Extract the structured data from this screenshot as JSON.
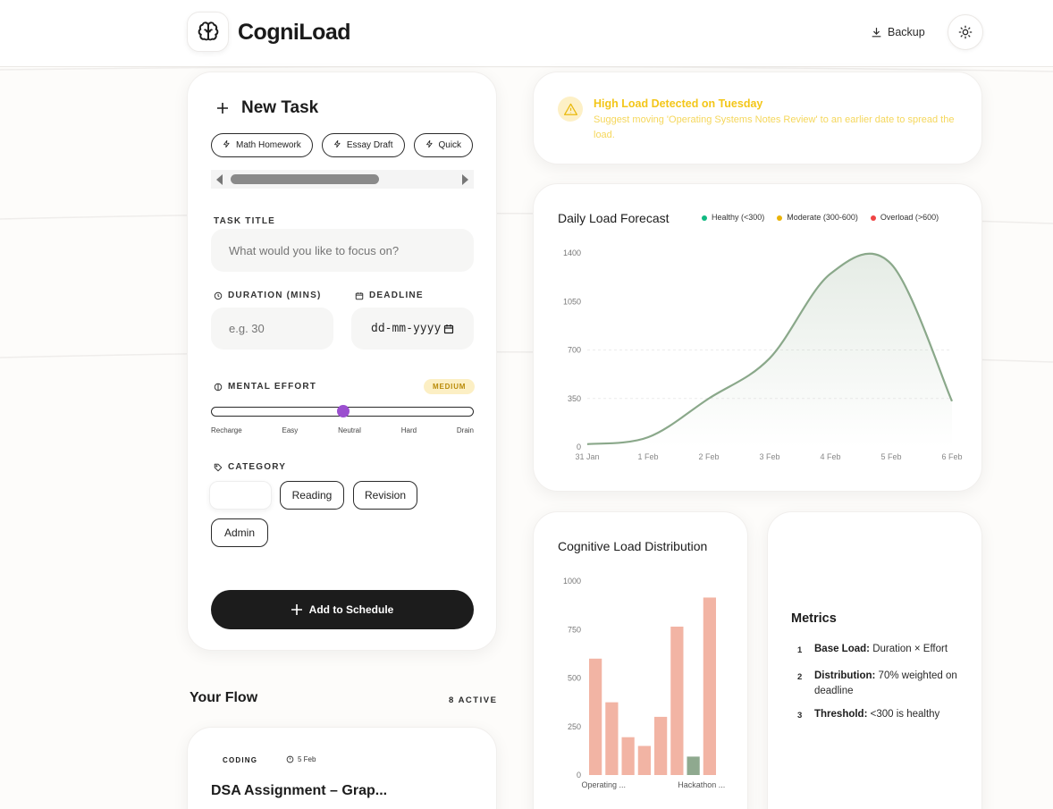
{
  "app": {
    "title": "CogniLoad",
    "backup_label": "Backup"
  },
  "new_task": {
    "heading": "New Task",
    "quick_chips": [
      "Math Homework",
      "Essay Draft",
      "Quick"
    ],
    "task_title_label": "TASK TITLE",
    "task_title_placeholder": "What would you like to focus on?",
    "duration_label": "DURATION (MINS)",
    "duration_placeholder": "e.g. 30",
    "deadline_label": "DEADLINE",
    "deadline_placeholder": "dd-mm-yyyy",
    "effort_label": "MENTAL EFFORT",
    "effort_badge": "MEDIUM",
    "effort_value_fraction": 0.5,
    "effort_scale": [
      "Recharge",
      "Easy",
      "Neutral",
      "Hard",
      "Drain"
    ],
    "category_label": "CATEGORY",
    "categories": [
      "",
      "Reading",
      "Revision",
      "Admin"
    ],
    "add_button": "Add to Schedule"
  },
  "flow": {
    "title": "Your Flow",
    "count": "8 ACTIVE",
    "first_task": {
      "tag": "CODING",
      "date": "5 Feb",
      "title": "DSA Assignment – Grap..."
    }
  },
  "alert": {
    "title": "High Load Detected on Tuesday",
    "body": "Suggest moving 'Operating Systems Notes Review' to an earlier date to spread the load.",
    "color": "#f3c619"
  },
  "forecast": {
    "title": "Daily Load Forecast",
    "legend": [
      {
        "label": "Healthy (<300)",
        "color": "#10b981"
      },
      {
        "label": "Moderate (300-600)",
        "color": "#eab308"
      },
      {
        "label": "Overload (>600)",
        "color": "#ef4444"
      }
    ]
  },
  "distribution": {
    "title": "Cognitive Load Distribution"
  },
  "metrics": {
    "title": "Metrics",
    "items": [
      {
        "num": "1",
        "label": "Base Load:",
        "text": " Duration × Effort"
      },
      {
        "num": "2",
        "label": "Distribution:",
        "text": " 70% weighted on deadline"
      },
      {
        "num": "3",
        "label": "Threshold:",
        "text": " <300 is healthy"
      }
    ]
  },
  "chart_data": [
    {
      "type": "area",
      "title": "Daily Load Forecast",
      "x": [
        "31 Jan",
        "1 Feb",
        "2 Feb",
        "3 Feb",
        "4 Feb",
        "5 Feb",
        "6 Feb"
      ],
      "series": [
        {
          "values": [
            20,
            70,
            350,
            640,
            1250,
            1320,
            330
          ]
        }
      ],
      "yticks": [
        0,
        350,
        700,
        1050,
        1400
      ],
      "ylim": [
        0,
        1400
      ],
      "line_color": "#8aa88a",
      "legend_position": "top-right"
    },
    {
      "type": "bar",
      "title": "Cognitive Load Distribution",
      "categories": [
        "Operating ...",
        "",
        "",
        "",
        "",
        "",
        "Hackathon ...",
        ""
      ],
      "values": [
        600,
        375,
        195,
        150,
        300,
        765,
        95,
        915
      ],
      "bar_colors": [
        "#f2b4a4",
        "#f2b4a4",
        "#f2b4a4",
        "#f2b4a4",
        "#f2b4a4",
        "#f2b4a4",
        "#8fa98f",
        "#f2b4a4"
      ],
      "yticks": [
        0,
        250,
        500,
        750,
        1000
      ],
      "ylim": [
        0,
        1000
      ]
    }
  ]
}
